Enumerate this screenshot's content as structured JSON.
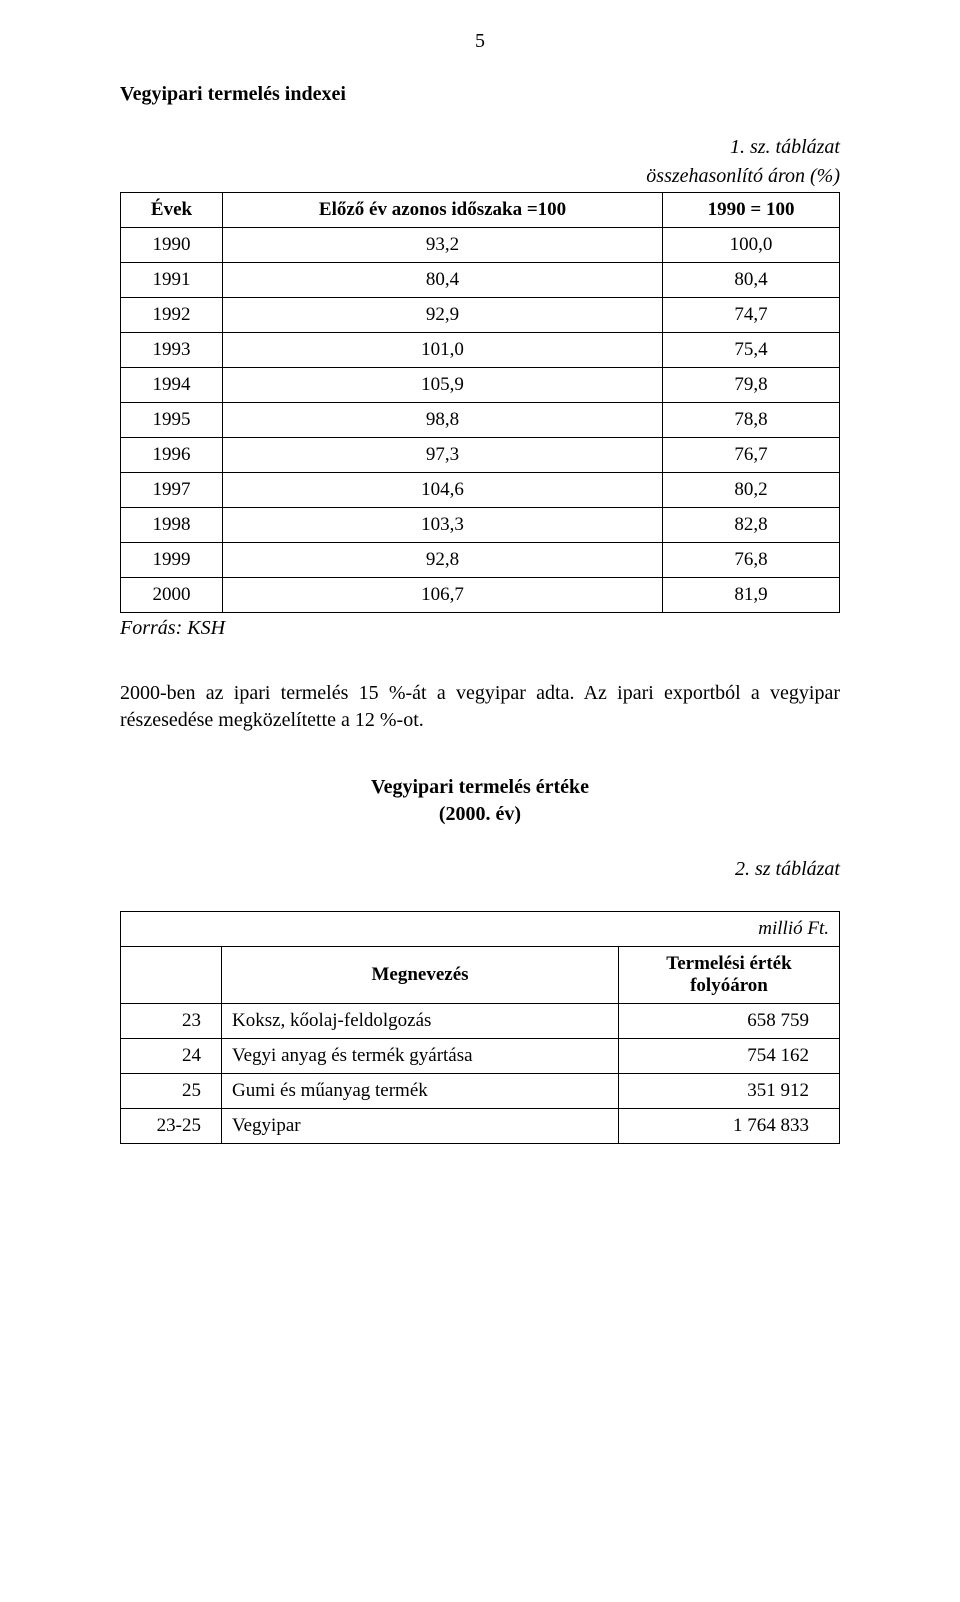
{
  "page_number": "5",
  "section1": {
    "title": "Vegyipari termelés indexei",
    "caption": "1. sz. táblázat",
    "subcaption": "összehasonlító áron (%)",
    "headers": {
      "col1": "Évek",
      "col2": "Előző év azonos időszaka =100",
      "col3": "1990 = 100"
    },
    "rows": [
      {
        "year": "1990",
        "prev": "93,2",
        "base": "100,0"
      },
      {
        "year": "1991",
        "prev": "80,4",
        "base": "80,4"
      },
      {
        "year": "1992",
        "prev": "92,9",
        "base": "74,7"
      },
      {
        "year": "1993",
        "prev": "101,0",
        "base": "75,4"
      },
      {
        "year": "1994",
        "prev": "105,9",
        "base": "79,8"
      },
      {
        "year": "1995",
        "prev": "98,8",
        "base": "78,8"
      },
      {
        "year": "1996",
        "prev": "97,3",
        "base": "76,7"
      },
      {
        "year": "1997",
        "prev": "104,6",
        "base": "80,2"
      },
      {
        "year": "1998",
        "prev": "103,3",
        "base": "82,8"
      },
      {
        "year": "1999",
        "prev": "92,8",
        "base": "76,8"
      },
      {
        "year": "2000",
        "prev": "106,7",
        "base": "81,9"
      }
    ],
    "source": "Forrás: KSH"
  },
  "body_text": "2000-ben az ipari termelés 15 %-át a vegyipar adta. Az ipari exportból a vegyipar részesedése megközelítette a 12 %-ot.",
  "section2": {
    "title_line1": "Vegyipari termelés értéke",
    "title_line2": "(2000. év)",
    "caption": "2. sz táblázat",
    "unit": "millió Ft.",
    "headers": {
      "col2": "Megnevezés",
      "col3_line1": "Termelési érték",
      "col3_line2": "folyóáron"
    },
    "rows": [
      {
        "code": "23",
        "desc": "Koksz, kőolaj-feldolgozás",
        "val": "658 759"
      },
      {
        "code": "24",
        "desc": "Vegyi anyag és termék gyártása",
        "val": "754 162"
      },
      {
        "code": "25",
        "desc": "Gumi és műanyag termék",
        "val": "351 912"
      },
      {
        "code": "23-25",
        "desc": "Vegyipar",
        "val": "1 764 833"
      }
    ]
  }
}
